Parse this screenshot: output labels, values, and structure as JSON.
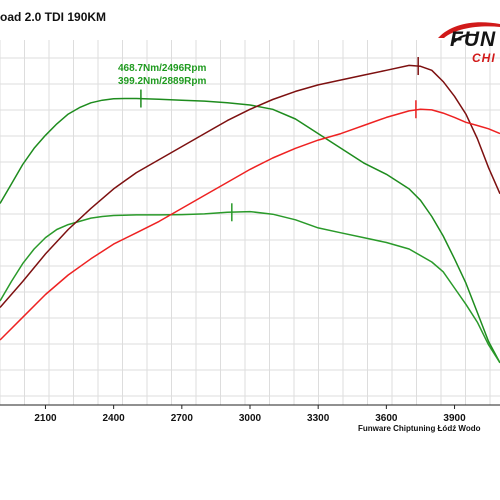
{
  "header": {
    "title": "oad 2.0 TDI  190KM",
    "logo_text": "FUN",
    "logo_sub": "CHI"
  },
  "annotations": {
    "torque": "468.7Nm/2496Rpm",
    "power": "399.2Nm/2889Rpm"
  },
  "footer": "Funware Chiptuning Łódź Wodo",
  "colors": {
    "tuned_torque": "#7d1010",
    "stock_torque": "#ee2222",
    "tuned_power": "#1e8c1e",
    "stock_power": "#2a9a2a",
    "grid": "#dddddd"
  },
  "chart_data": {
    "type": "line",
    "xlim": [
      1900,
      4100
    ],
    "xticks": [
      2100,
      2400,
      2700,
      3000,
      3300,
      3600,
      3900
    ],
    "ylim": [
      0,
      100
    ],
    "series": [
      {
        "color": "#1e8c1e",
        "x": [
          1900,
          1950,
          2000,
          2050,
          2100,
          2150,
          2200,
          2250,
          2300,
          2350,
          2400,
          2450,
          2500,
          2600,
          2700,
          2800,
          2900,
          3000,
          3100,
          3200,
          3300,
          3400,
          3500,
          3600,
          3700,
          3750,
          3800,
          3850,
          3900,
          3950,
          4000,
          4050,
          4100
        ],
        "y": [
          62,
          68,
          74,
          79,
          83,
          86.5,
          89.5,
          91.5,
          93,
          93.8,
          94.2,
          94.3,
          94.3,
          94.1,
          93.8,
          93.5,
          93,
          92.3,
          91,
          88,
          83.5,
          79,
          74.5,
          71,
          66.5,
          63,
          58,
          52,
          45,
          37.5,
          28.5,
          19.5,
          13
        ]
      },
      {
        "color": "#2a9a2a",
        "x": [
          1900,
          1950,
          2000,
          2050,
          2100,
          2150,
          2200,
          2250,
          2300,
          2350,
          2400,
          2500,
          2600,
          2700,
          2800,
          2900,
          3000,
          3100,
          3200,
          3300,
          3400,
          3500,
          3600,
          3700,
          3800,
          3850,
          3900,
          3950,
          4000,
          4050,
          4100
        ],
        "y": [
          32,
          38,
          43.5,
          48,
          51.5,
          54,
          55.5,
          56.5,
          57.5,
          58,
          58.3,
          58.5,
          58.5,
          58.6,
          58.8,
          59.3,
          59.5,
          58.7,
          57,
          54.5,
          53,
          51.5,
          50,
          48,
          44,
          41,
          36,
          31,
          25.5,
          18.5,
          13
        ]
      },
      {
        "color": "#7d1010",
        "x": [
          1900,
          2000,
          2100,
          2200,
          2300,
          2400,
          2500,
          2600,
          2700,
          2800,
          2900,
          3000,
          3100,
          3200,
          3300,
          3400,
          3500,
          3600,
          3700,
          3750,
          3800,
          3850,
          3900,
          3950,
          4000,
          4050,
          4100
        ],
        "y": [
          30,
          38,
          46.5,
          54,
          60.5,
          66.5,
          71.5,
          75.5,
          79.5,
          83.5,
          87.5,
          91,
          94,
          96.5,
          98.5,
          100,
          101.5,
          103,
          104.5,
          104.2,
          103,
          99.5,
          95,
          89.5,
          82,
          73,
          65
        ]
      },
      {
        "color": "#ee2222",
        "x": [
          1900,
          2000,
          2100,
          2200,
          2300,
          2400,
          2500,
          2600,
          2700,
          2800,
          2900,
          3000,
          3100,
          3200,
          3300,
          3400,
          3500,
          3600,
          3700,
          3750,
          3800,
          3850,
          3900,
          3950,
          4000,
          4050,
          4100
        ],
        "y": [
          20,
          27,
          34,
          40,
          45,
          49.5,
          53,
          56.5,
          60.5,
          64.5,
          68.5,
          72.5,
          76,
          79,
          81.5,
          83.5,
          86,
          88.5,
          90.5,
          91,
          90.8,
          89.8,
          88.5,
          87,
          86,
          85,
          83.5
        ]
      }
    ],
    "markers": [
      {
        "color": "#1e8c1e",
        "x": 2520,
        "y": 94.3
      },
      {
        "color": "#2a9a2a",
        "x": 2920,
        "y": 59.3
      },
      {
        "color": "#7d1010",
        "x": 3740,
        "y": 104.3
      },
      {
        "color": "#ee2222",
        "x": 3730,
        "y": 91
      }
    ]
  }
}
